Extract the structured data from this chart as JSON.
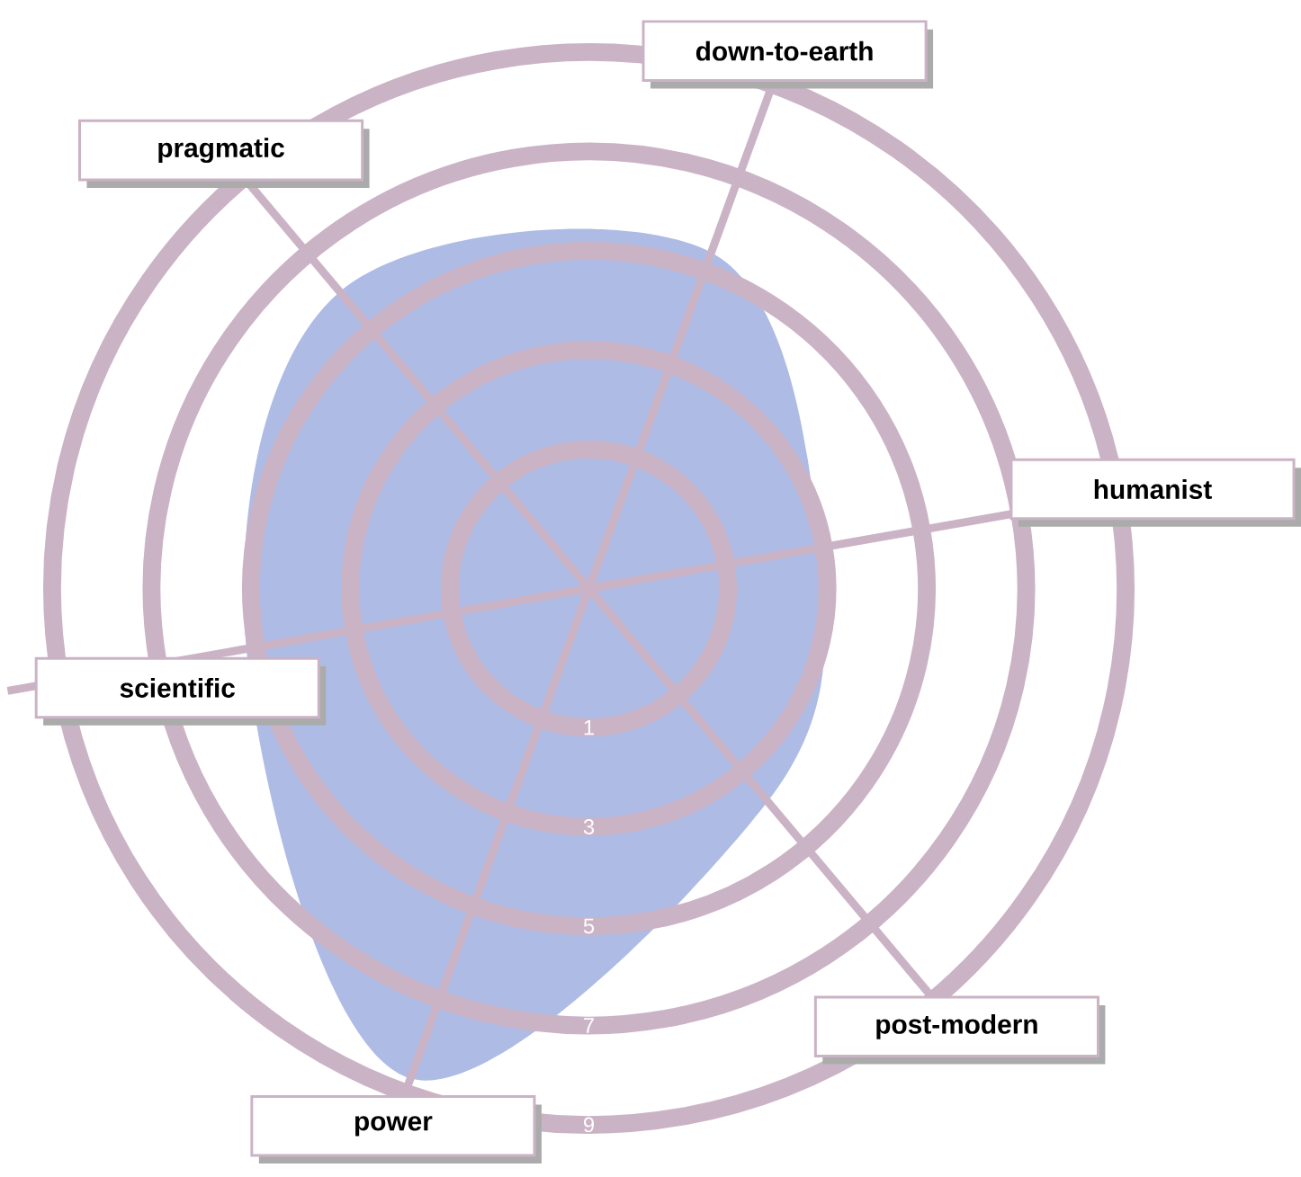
{
  "chart_data": {
    "type": "radar",
    "categories": [
      "down-to-earth",
      "humanist",
      "post-modern",
      "power",
      "scientific",
      "pragmatic"
    ],
    "series": [
      {
        "color": "#aebbe5",
        "values": [
          5.4,
          2.9,
          3.8,
          8.7,
          5.2,
          6.0
        ]
      }
    ],
    "ylim": [
      -1.8,
      9
    ],
    "yticks": [
      1,
      3,
      5,
      7,
      9
    ],
    "grid": true
  }
}
